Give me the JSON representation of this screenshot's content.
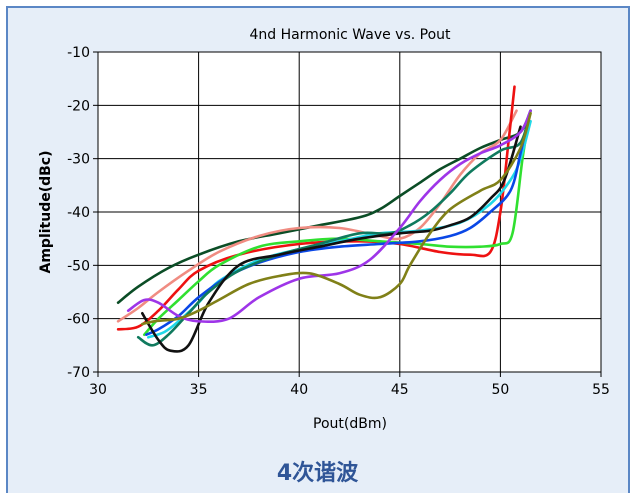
{
  "caption": "4次谐波",
  "chart_data": {
    "type": "line",
    "title": "4nd Harmonic Wave vs. Pout",
    "xlabel": "Pout(dBm)",
    "ylabel": "Amplitude(dBc)",
    "xlim": [
      30,
      55
    ],
    "ylim": [
      -70,
      -10
    ],
    "xticks": [
      30,
      35,
      40,
      45,
      50,
      55
    ],
    "yticks": [
      -10,
      -20,
      -30,
      -40,
      -50,
      -60,
      -70
    ],
    "grid": true,
    "legend": "none",
    "series": [
      {
        "color": "#0b4d26",
        "x": [
          31.0,
          32.0,
          33.5,
          35.0,
          37.0,
          39.0,
          41.0,
          43.0,
          44.0,
          45.0,
          46.0,
          47.0,
          48.0,
          49.0,
          50.0,
          51.0,
          51.5
        ],
        "y": [
          -57.0,
          -54.0,
          -50.5,
          -48.0,
          -45.5,
          -44.0,
          -42.5,
          -41.0,
          -39.5,
          -37.0,
          -34.5,
          -32.0,
          -30.0,
          -28.0,
          -26.5,
          -25.0,
          -21.0
        ]
      },
      {
        "color": "#f08c82",
        "x": [
          31.0,
          32.0,
          33.0,
          34.5,
          36.0,
          38.0,
          40.0,
          42.0,
          44.0,
          45.0,
          46.0,
          47.0,
          48.0,
          49.0,
          50.0,
          50.8
        ],
        "y": [
          -60.5,
          -58.0,
          -55.0,
          -51.0,
          -47.5,
          -44.5,
          -43.0,
          -43.0,
          -44.5,
          -45.0,
          -43.0,
          -38.5,
          -33.0,
          -29.0,
          -26.5,
          -21.0
        ]
      },
      {
        "color": "#ee1111",
        "x": [
          31.0,
          32.0,
          33.0,
          34.0,
          35.0,
          37.0,
          40.0,
          43.0,
          45.0,
          47.0,
          48.5,
          49.5,
          50.0,
          50.4,
          50.7
        ],
        "y": [
          -62.0,
          -61.5,
          -58.5,
          -54.5,
          -51.0,
          -48.0,
          -46.0,
          -45.5,
          -46.0,
          -47.5,
          -48.0,
          -47.5,
          -40.0,
          -27.0,
          -16.5
        ]
      },
      {
        "color": "#30e030",
        "x": [
          32.3,
          33.0,
          34.0,
          35.0,
          36.0,
          38.0,
          40.0,
          42.0,
          44.0,
          46.0,
          47.5,
          49.0,
          50.0,
          50.6,
          51.1,
          51.4
        ],
        "y": [
          -63.0,
          -60.0,
          -56.5,
          -53.0,
          -50.0,
          -46.5,
          -45.5,
          -45.0,
          -45.5,
          -46.0,
          -46.5,
          -46.5,
          -46.0,
          -44.0,
          -30.0,
          -23.0
        ]
      },
      {
        "color": "#1fd8e8",
        "x": [
          32.5,
          33.3,
          34.0,
          35.0,
          36.0,
          38.0,
          40.0,
          42.0,
          44.0,
          46.0,
          48.0,
          49.5,
          50.5,
          51.0,
          51.5
        ],
        "y": [
          -63.5,
          -62.5,
          -60.5,
          -57.0,
          -53.0,
          -49.0,
          -47.0,
          -45.5,
          -44.0,
          -43.5,
          -42.0,
          -38.5,
          -34.0,
          -30.0,
          -23.0
        ]
      },
      {
        "color": "#0a47e6",
        "x": [
          32.4,
          33.0,
          34.0,
          35.0,
          36.5,
          38.0,
          40.0,
          42.0,
          44.0,
          46.0,
          47.5,
          48.5,
          49.5,
          50.5,
          51.0,
          51.4
        ],
        "y": [
          -63.0,
          -62.0,
          -59.5,
          -56.0,
          -52.0,
          -49.5,
          -47.5,
          -46.5,
          -46.0,
          -45.5,
          -44.5,
          -43.0,
          -40.0,
          -36.0,
          -29.0,
          -22.0
        ]
      },
      {
        "color": "#107a5e",
        "x": [
          32.0,
          32.7,
          33.5,
          34.5,
          35.5,
          37.0,
          39.0,
          41.0,
          43.0,
          44.5,
          45.5,
          46.5,
          47.5,
          48.5,
          50.0,
          51.0,
          51.5
        ],
        "y": [
          -63.5,
          -65.0,
          -63.0,
          -59.0,
          -55.0,
          -51.0,
          -48.0,
          -46.0,
          -44.0,
          -44.0,
          -42.5,
          -40.0,
          -36.5,
          -32.5,
          -28.5,
          -27.0,
          -21.0
        ]
      },
      {
        "color": "#111111",
        "x": [
          32.2,
          33.0,
          33.6,
          34.5,
          35.5,
          37.0,
          39.0,
          41.0,
          43.0,
          45.0,
          46.5,
          47.5,
          48.5,
          49.5,
          50.2,
          51.0
        ],
        "y": [
          -59.0,
          -64.0,
          -66.0,
          -65.0,
          -57.0,
          -50.0,
          -48.0,
          -46.5,
          -45.0,
          -44.0,
          -43.5,
          -42.5,
          -41.0,
          -37.5,
          -34.0,
          -24.0
        ]
      },
      {
        "color": "#9e35e8",
        "x": [
          31.5,
          32.3,
          33.0,
          34.0,
          35.0,
          36.5,
          38.0,
          40.0,
          42.0,
          43.5,
          45.0,
          46.0,
          47.0,
          48.0,
          49.0,
          50.0,
          51.0,
          51.5
        ],
        "y": [
          -58.5,
          -56.5,
          -57.0,
          -59.5,
          -60.5,
          -60.0,
          -56.0,
          -52.5,
          -51.5,
          -49.0,
          -43.0,
          -38.0,
          -34.0,
          -31.0,
          -29.0,
          -27.5,
          -25.0,
          -21.0
        ]
      },
      {
        "color": "#808018",
        "x": [
          32.2,
          32.8,
          34.0,
          35.0,
          36.0,
          37.5,
          39.0,
          40.5,
          42.0,
          43.0,
          44.0,
          45.0,
          45.5,
          46.5,
          47.5,
          49.0,
          50.0,
          51.0,
          51.5
        ],
        "y": [
          -61.0,
          -60.5,
          -60.0,
          -58.5,
          -56.5,
          -53.5,
          -52.0,
          -51.5,
          -53.5,
          -55.5,
          -56.0,
          -53.5,
          -50.0,
          -44.0,
          -39.5,
          -36.0,
          -34.0,
          -28.0,
          -21.5
        ]
      }
    ]
  }
}
